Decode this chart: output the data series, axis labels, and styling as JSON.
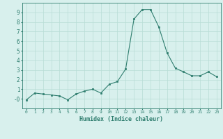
{
  "x": [
    0,
    1,
    2,
    3,
    4,
    5,
    6,
    7,
    8,
    9,
    10,
    11,
    12,
    13,
    14,
    15,
    16,
    17,
    18,
    19,
    20,
    21,
    22,
    23
  ],
  "y": [
    -0.1,
    0.6,
    0.5,
    0.4,
    0.3,
    -0.1,
    0.5,
    0.8,
    1.0,
    0.6,
    1.5,
    1.8,
    3.1,
    8.3,
    9.3,
    9.3,
    7.5,
    4.8,
    3.2,
    2.8,
    2.4,
    2.4,
    2.8,
    2.3
  ],
  "xlabel": "Humidex (Indice chaleur)",
  "ylim": [
    -1,
    10
  ],
  "xlim": [
    -0.5,
    23.5
  ],
  "yticks": [
    0,
    1,
    2,
    3,
    4,
    5,
    6,
    7,
    8,
    9
  ],
  "ytick_labels": [
    "-0",
    "1",
    "2",
    "3",
    "4",
    "5",
    "6",
    "7",
    "8",
    "9"
  ],
  "xticks": [
    0,
    1,
    2,
    3,
    4,
    5,
    6,
    7,
    8,
    9,
    10,
    11,
    12,
    13,
    14,
    15,
    16,
    17,
    18,
    19,
    20,
    21,
    22,
    23
  ],
  "line_color": "#2e7d6e",
  "marker_color": "#2e7d6e",
  "bg_color": "#d8f0ed",
  "grid_color": "#b8ddd6",
  "axis_color": "#2e7d6e",
  "label_color": "#2e7d6e",
  "tick_color": "#2e7d6e"
}
